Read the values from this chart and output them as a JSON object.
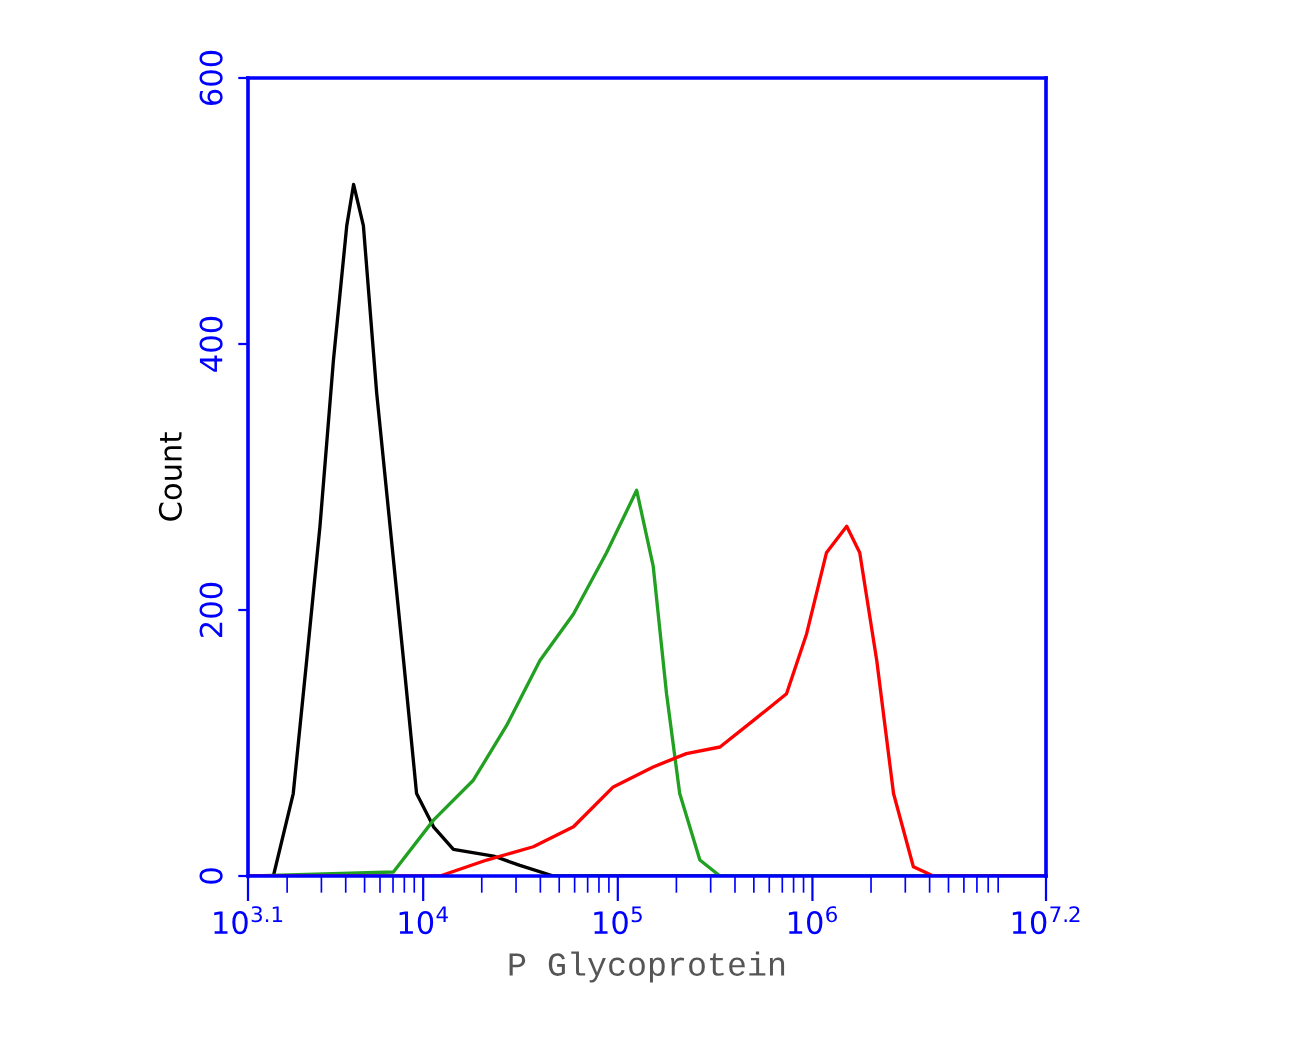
{
  "chart_data": {
    "type": "line",
    "xlabel": "P Glycoprotein",
    "ylabel": "Count",
    "log": "x",
    "grid": false,
    "legend": false,
    "marker": "none",
    "line_style": "solid",
    "xlim": [
      1258.9,
      15848932
    ],
    "xticks": [
      {
        "value": 1258.9,
        "label": "10$^{3.1}$"
      },
      {
        "value": 10000,
        "label": "10$^{4}$"
      },
      {
        "value": 100000,
        "label": "10$^{5}$"
      },
      {
        "value": 1000000,
        "label": "10$^{6}$"
      },
      {
        "value": 15848932,
        "label": "10$^{7.2}$"
      }
    ],
    "ylim": [
      0,
      600
    ],
    "yticks": [
      0,
      200,
      400,
      600
    ],
    "series": [
      {
        "color": "#000000",
        "x": [
          1259,
          1700,
          2150,
          2520,
          2950,
          3460,
          4050,
          4390,
          4930,
          5770,
          6760,
          7930,
          9250,
          11300,
          14300,
          23000,
          31400,
          46700,
          15800000
        ],
        "values": [
          0,
          0,
          62,
          162,
          263,
          388,
          489,
          520,
          489,
          363,
          263,
          162,
          62,
          37,
          20,
          15,
          8,
          0,
          0
        ]
      },
      {
        "color": "#22a022",
        "x": [
          1259,
          7030,
          11300,
          18100,
          26800,
          39800,
          59200,
          87500,
          125000,
          152000,
          178000,
          208000,
          264000,
          335000,
          15800000
        ],
        "values": [
          0,
          3,
          42,
          72,
          113,
          162,
          197,
          243,
          290,
          233,
          137,
          62,
          12,
          0,
          0
        ]
      },
      {
        "color": "#ff0000",
        "x": [
          1259,
          12200,
          21200,
          36800,
          59200,
          94800,
          152000,
          225000,
          335000,
          498000,
          736000,
          933000,
          1180000,
          1500000,
          1750000,
          2140000,
          2610000,
          3300000,
          4180000,
          15800000
        ],
        "values": [
          0,
          0,
          12,
          22,
          37,
          67,
          82,
          92,
          97,
          117,
          137,
          182,
          243,
          263,
          243,
          162,
          62,
          7,
          0,
          0
        ]
      }
    ]
  }
}
